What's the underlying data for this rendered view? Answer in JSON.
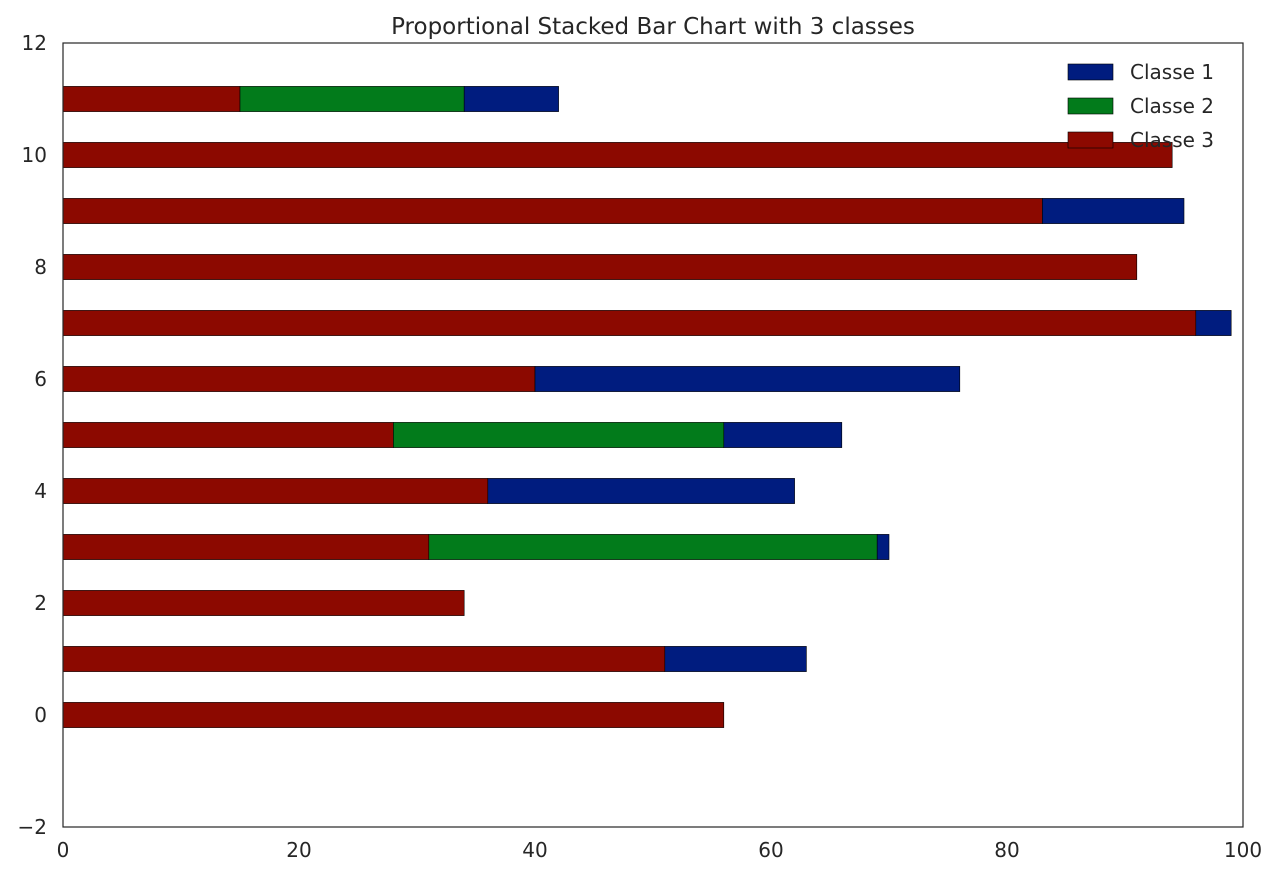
{
  "chart_data": {
    "type": "bar",
    "orientation": "horizontal",
    "stacked": true,
    "title": "Proportional Stacked Bar Chart with 3 classes",
    "xlabel": "",
    "ylabel": "",
    "xlim": [
      0,
      100
    ],
    "ylim": [
      -2,
      12
    ],
    "xticks": [
      "0",
      "20",
      "40",
      "60",
      "80",
      "100"
    ],
    "yticks": [
      "−2",
      "0",
      "2",
      "4",
      "6",
      "8",
      "10",
      "12"
    ],
    "grid": false,
    "legend_position": "top-right",
    "categories": [
      0,
      1,
      2,
      3,
      4,
      5,
      6,
      7,
      8,
      9,
      10,
      11
    ],
    "series": [
      {
        "name": "Classe 3",
        "color": "#8c0900",
        "values": [
          56,
          51,
          34,
          31,
          36,
          28,
          40,
          96,
          91,
          83,
          94,
          15
        ]
      },
      {
        "name": "Classe 2",
        "color": "#027b1b",
        "values": [
          0,
          0,
          0,
          38,
          0,
          28,
          0,
          0,
          0,
          0,
          0,
          19
        ]
      },
      {
        "name": "Classe 1",
        "color": "#001c7f",
        "values": [
          0,
          12,
          0,
          1,
          26,
          10,
          36,
          3,
          0,
          12,
          0,
          8
        ]
      }
    ],
    "legend_order": [
      "Classe 1",
      "Classe 2",
      "Classe 3"
    ]
  }
}
